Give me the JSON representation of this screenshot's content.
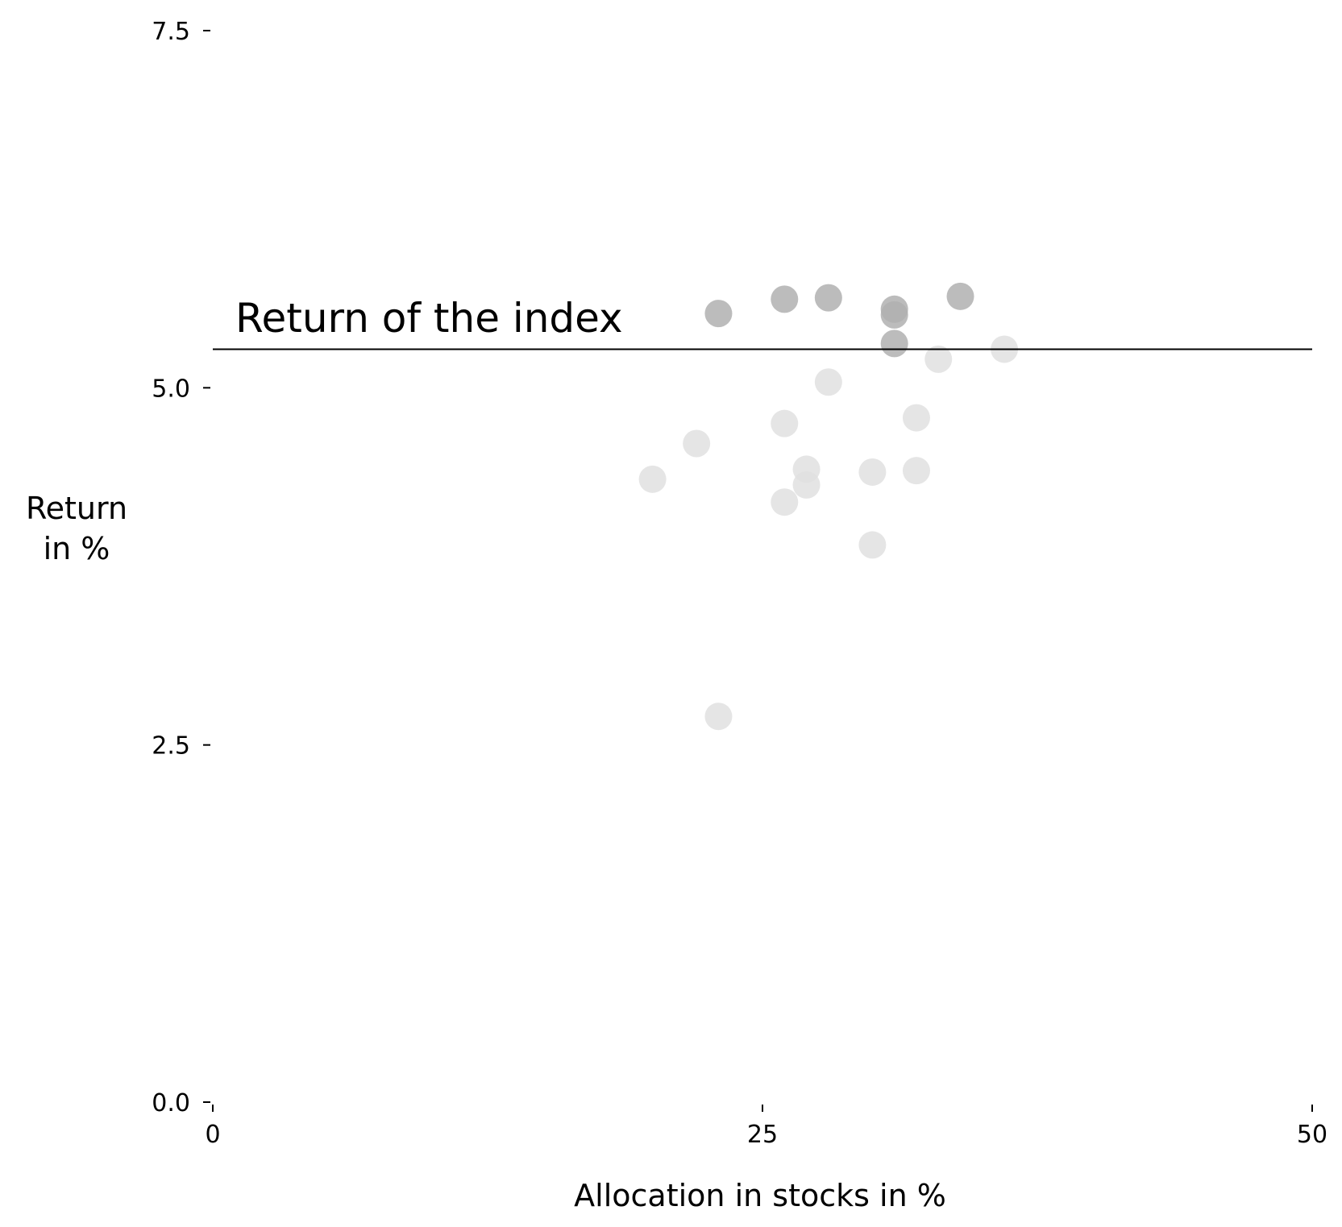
{
  "chart_data": {
    "type": "scatter",
    "xlabel": "Allocation in stocks in %",
    "ylabel_lines": [
      "Return",
      "in %"
    ],
    "xlim": [
      0,
      50
    ],
    "ylim": [
      0,
      7.5
    ],
    "x_ticks": [
      "0",
      "25",
      "50"
    ],
    "y_ticks": [
      "0.0",
      "2.5",
      "5.0",
      "7.5"
    ],
    "grid": false,
    "reference_line": {
      "y": 5.27,
      "label": "Return of the index",
      "color": "#000000"
    },
    "colors": {
      "above": "#b0b0b0",
      "below": "#e0e0e0"
    },
    "series": [
      {
        "points": [
          {
            "x": 23.0,
            "y": 5.52
          },
          {
            "x": 26.0,
            "y": 5.62
          },
          {
            "x": 28.0,
            "y": 5.63
          },
          {
            "x": 31.0,
            "y": 5.55
          },
          {
            "x": 31.0,
            "y": 5.51
          },
          {
            "x": 34.0,
            "y": 5.64
          },
          {
            "x": 31.0,
            "y": 5.31
          }
        ]
      },
      {
        "points": [
          {
            "x": 36.0,
            "y": 5.27
          },
          {
            "x": 33.0,
            "y": 5.2
          },
          {
            "x": 28.0,
            "y": 5.04
          },
          {
            "x": 26.0,
            "y": 4.75
          },
          {
            "x": 32.0,
            "y": 4.79
          },
          {
            "x": 22.0,
            "y": 4.61
          },
          {
            "x": 27.0,
            "y": 4.43
          },
          {
            "x": 27.0,
            "y": 4.32
          },
          {
            "x": 20.0,
            "y": 4.36
          },
          {
            "x": 30.0,
            "y": 4.41
          },
          {
            "x": 32.0,
            "y": 4.42
          },
          {
            "x": 26.0,
            "y": 4.2
          },
          {
            "x": 30.0,
            "y": 3.9
          },
          {
            "x": 23.0,
            "y": 2.7
          }
        ]
      }
    ]
  }
}
